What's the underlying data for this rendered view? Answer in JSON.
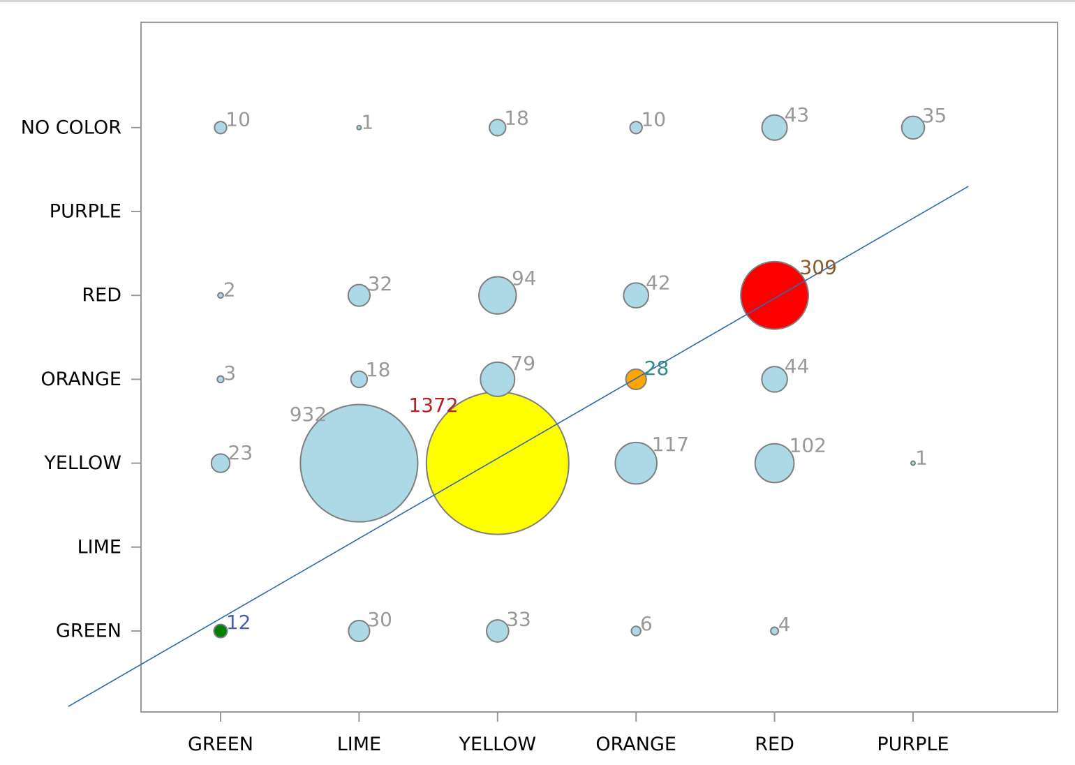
{
  "chart_data": {
    "type": "bubble",
    "x_categories": [
      "GREEN",
      "LIME",
      "YELLOW",
      "ORANGE",
      "RED",
      "PURPLE"
    ],
    "y_categories": [
      "GREEN",
      "LIME",
      "YELLOW",
      "ORANGE",
      "RED",
      "PURPLE",
      "NO COLOR"
    ],
    "grid": false,
    "legend": "none",
    "bubbles": [
      {
        "x": "GREEN",
        "y": "NO COLOR",
        "value": 10,
        "fill": "#add8e6",
        "label_color": "#999999"
      },
      {
        "x": "LIME",
        "y": "NO COLOR",
        "value": 1,
        "fill": "#add8e6",
        "label_color": "#999999"
      },
      {
        "x": "YELLOW",
        "y": "NO COLOR",
        "value": 18,
        "fill": "#add8e6",
        "label_color": "#999999"
      },
      {
        "x": "ORANGE",
        "y": "NO COLOR",
        "value": 10,
        "fill": "#add8e6",
        "label_color": "#999999"
      },
      {
        "x": "RED",
        "y": "NO COLOR",
        "value": 43,
        "fill": "#add8e6",
        "label_color": "#999999"
      },
      {
        "x": "PURPLE",
        "y": "NO COLOR",
        "value": 35,
        "fill": "#add8e6",
        "label_color": "#999999"
      },
      {
        "x": "GREEN",
        "y": "RED",
        "value": 2,
        "fill": "#add8e6",
        "label_color": "#999999"
      },
      {
        "x": "LIME",
        "y": "RED",
        "value": 32,
        "fill": "#add8e6",
        "label_color": "#999999"
      },
      {
        "x": "YELLOW",
        "y": "RED",
        "value": 94,
        "fill": "#add8e6",
        "label_color": "#999999"
      },
      {
        "x": "ORANGE",
        "y": "RED",
        "value": 42,
        "fill": "#add8e6",
        "label_color": "#999999"
      },
      {
        "x": "RED",
        "y": "RED",
        "value": 309,
        "fill": "#ff0000",
        "label_color": "#8b5a2b"
      },
      {
        "x": "GREEN",
        "y": "ORANGE",
        "value": 3,
        "fill": "#add8e6",
        "label_color": "#999999"
      },
      {
        "x": "LIME",
        "y": "ORANGE",
        "value": 18,
        "fill": "#add8e6",
        "label_color": "#999999"
      },
      {
        "x": "YELLOW",
        "y": "ORANGE",
        "value": 79,
        "fill": "#add8e6",
        "label_color": "#999999"
      },
      {
        "x": "ORANGE",
        "y": "ORANGE",
        "value": 28,
        "fill": "#ffa500",
        "label_color": "#2e8b8b"
      },
      {
        "x": "RED",
        "y": "ORANGE",
        "value": 44,
        "fill": "#add8e6",
        "label_color": "#999999"
      },
      {
        "x": "GREEN",
        "y": "YELLOW",
        "value": 23,
        "fill": "#add8e6",
        "label_color": "#999999"
      },
      {
        "x": "LIME",
        "y": "YELLOW",
        "value": 932,
        "fill": "#add8e6",
        "label_color": "#999999"
      },
      {
        "x": "YELLOW",
        "y": "YELLOW",
        "value": 1372,
        "fill": "#ffff00",
        "label_color": "#b22222"
      },
      {
        "x": "ORANGE",
        "y": "YELLOW",
        "value": 117,
        "fill": "#add8e6",
        "label_color": "#999999"
      },
      {
        "x": "RED",
        "y": "YELLOW",
        "value": 102,
        "fill": "#add8e6",
        "label_color": "#999999"
      },
      {
        "x": "PURPLE",
        "y": "YELLOW",
        "value": 1,
        "fill": "#add8e6",
        "label_color": "#999999"
      },
      {
        "x": "GREEN",
        "y": "GREEN",
        "value": 12,
        "fill": "#008000",
        "label_color": "#4a5fa8"
      },
      {
        "x": "LIME",
        "y": "GREEN",
        "value": 30,
        "fill": "#add8e6",
        "label_color": "#999999"
      },
      {
        "x": "YELLOW",
        "y": "GREEN",
        "value": 33,
        "fill": "#add8e6",
        "label_color": "#999999"
      },
      {
        "x": "ORANGE",
        "y": "GREEN",
        "value": 6,
        "fill": "#add8e6",
        "label_color": "#999999"
      },
      {
        "x": "RED",
        "y": "GREEN",
        "value": 4,
        "fill": "#add8e6",
        "label_color": "#999999"
      }
    ],
    "reference_line": {
      "color": "#2e6ab0",
      "from_index": [
        -1.1,
        -0.9
      ],
      "to_index": [
        5.4,
        5.3
      ]
    },
    "colors": {
      "axis": "#999999",
      "bubble_outline": "#7f7f7f"
    }
  }
}
